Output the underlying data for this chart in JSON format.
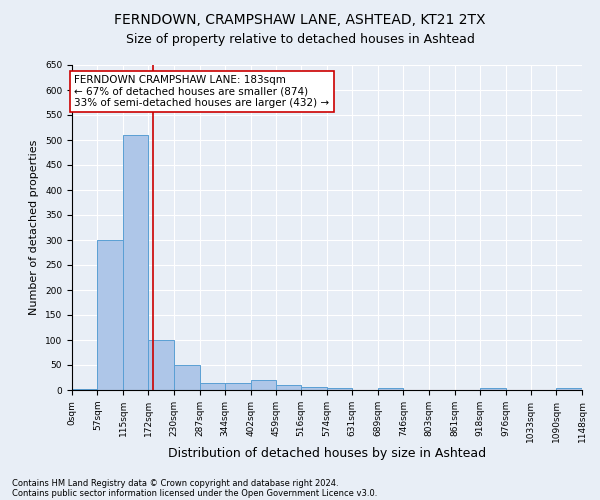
{
  "title1": "FERNDOWN, CRAMPSHAW LANE, ASHTEAD, KT21 2TX",
  "title2": "Size of property relative to detached houses in Ashtead",
  "xlabel": "Distribution of detached houses by size in Ashtead",
  "ylabel": "Number of detached properties",
  "footnote1": "Contains HM Land Registry data © Crown copyright and database right 2024.",
  "footnote2": "Contains public sector information licensed under the Open Government Licence v3.0.",
  "bin_edges": [
    0,
    57,
    115,
    172,
    230,
    287,
    344,
    402,
    459,
    516,
    574,
    631,
    689,
    746,
    803,
    861,
    918,
    976,
    1033,
    1090,
    1148
  ],
  "bin_labels": [
    "0sqm",
    "57sqm",
    "115sqm",
    "172sqm",
    "230sqm",
    "287sqm",
    "344sqm",
    "402sqm",
    "459sqm",
    "516sqm",
    "574sqm",
    "631sqm",
    "689sqm",
    "746sqm",
    "803sqm",
    "861sqm",
    "918sqm",
    "976sqm",
    "1033sqm",
    "1090sqm",
    "1148sqm"
  ],
  "bar_heights": [
    2,
    300,
    510,
    100,
    50,
    15,
    15,
    20,
    10,
    7,
    5,
    0,
    5,
    0,
    0,
    0,
    5,
    0,
    0,
    5
  ],
  "bar_color": "#aec6e8",
  "bar_edgecolor": "#5a9fd4",
  "vline_x": 183,
  "vline_color": "#cc0000",
  "annotation_text": "FERNDOWN CRAMPSHAW LANE: 183sqm\n← 67% of detached houses are smaller (874)\n33% of semi-detached houses are larger (432) →",
  "annotation_box_color": "white",
  "annotation_box_edgecolor": "#cc0000",
  "ylim": [
    0,
    650
  ],
  "yticks": [
    0,
    50,
    100,
    150,
    200,
    250,
    300,
    350,
    400,
    450,
    500,
    550,
    600,
    650
  ],
  "background_color": "#e8eef6",
  "plot_bg_color": "#e8eef6",
  "grid_color": "white",
  "title1_fontsize": 10,
  "title2_fontsize": 9,
  "xlabel_fontsize": 9,
  "ylabel_fontsize": 8,
  "annotation_fontsize": 7.5,
  "tick_fontsize": 6.5,
  "footnote_fontsize": 6
}
